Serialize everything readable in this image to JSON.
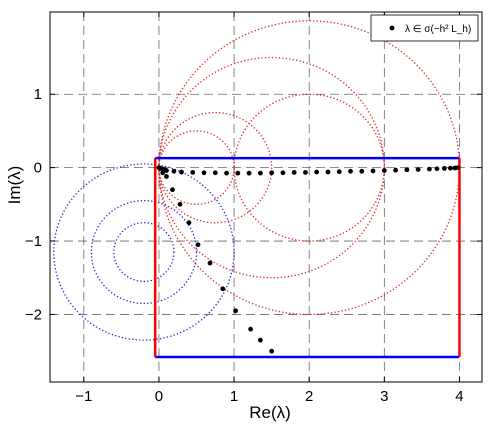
{
  "chart_data": {
    "type": "scatter",
    "xlabel": "Re(λ)",
    "ylabel": "Im(λ)",
    "xlim": [
      -1.45,
      4.3
    ],
    "ylim": [
      -2.92,
      2.12
    ],
    "xticks": [
      -1,
      0,
      1,
      2,
      3,
      4
    ],
    "yticks": [
      -2,
      -1,
      0,
      1
    ],
    "xtick_labels": [
      "−1",
      "0",
      "1",
      "2",
      "3",
      "4"
    ],
    "ytick_labels": [
      "−2",
      "−1",
      "0",
      "1"
    ],
    "grid": true,
    "legend": {
      "placement": "top-right",
      "entries": [
        {
          "marker": "black-dot",
          "label": "λ ∈ σ(−h² L_h)"
        }
      ]
    },
    "series": [
      {
        "name": "λ ∈ σ(−h² L_h)",
        "color": "#000000",
        "points": [
          [
            0.0,
            0.0
          ],
          [
            0.02,
            -0.01
          ],
          [
            0.04,
            -0.015
          ],
          [
            0.06,
            -0.02
          ],
          [
            0.08,
            -0.03
          ],
          [
            0.1,
            -0.04
          ],
          [
            0.2,
            -0.05
          ],
          [
            0.3,
            -0.06
          ],
          [
            0.45,
            -0.065
          ],
          [
            0.6,
            -0.07
          ],
          [
            0.75,
            -0.07
          ],
          [
            0.9,
            -0.075
          ],
          [
            1.05,
            -0.075
          ],
          [
            1.2,
            -0.075
          ],
          [
            1.35,
            -0.075
          ],
          [
            1.5,
            -0.07
          ],
          [
            1.65,
            -0.07
          ],
          [
            1.8,
            -0.065
          ],
          [
            1.95,
            -0.065
          ],
          [
            2.1,
            -0.06
          ],
          [
            2.25,
            -0.06
          ],
          [
            2.4,
            -0.055
          ],
          [
            2.55,
            -0.05
          ],
          [
            2.7,
            -0.05
          ],
          [
            2.85,
            -0.045
          ],
          [
            3.0,
            -0.04
          ],
          [
            3.15,
            -0.035
          ],
          [
            3.3,
            -0.03
          ],
          [
            3.45,
            -0.025
          ],
          [
            3.6,
            -0.02
          ],
          [
            3.7,
            -0.015
          ],
          [
            3.8,
            -0.01
          ],
          [
            3.88,
            -0.008
          ],
          [
            3.94,
            -0.005
          ],
          [
            3.98,
            0.0
          ],
          [
            0.05,
            -0.07
          ],
          [
            0.1,
            -0.12
          ],
          [
            0.18,
            -0.3
          ],
          [
            0.28,
            -0.5
          ],
          [
            0.4,
            -0.75
          ],
          [
            0.52,
            -1.05
          ],
          [
            0.68,
            -1.3
          ],
          [
            0.85,
            -1.65
          ],
          [
            1.02,
            -1.95
          ],
          [
            1.22,
            -2.2
          ],
          [
            1.35,
            -2.35
          ],
          [
            1.5,
            -2.5
          ]
        ]
      }
    ],
    "circles": [
      {
        "color": "#dd2222",
        "cx": 2.0,
        "cy": 0.0,
        "r": 2.0
      },
      {
        "color": "#dd2222",
        "cx": 1.5,
        "cy": 0.0,
        "r": 1.5
      },
      {
        "color": "#dd2222",
        "cx": 2.0,
        "cy": 0.0,
        "r": 1.0
      },
      {
        "color": "#dd2222",
        "cx": 0.75,
        "cy": 0.0,
        "r": 0.75
      },
      {
        "color": "#dd2222",
        "cx": 0.5,
        "cy": 0.0,
        "r": 0.5
      },
      {
        "color": "#2222dd",
        "cx": -0.2,
        "cy": -1.15,
        "r": 1.2
      },
      {
        "color": "#2222dd",
        "cx": -0.2,
        "cy": -1.15,
        "r": 0.7
      },
      {
        "color": "#2222dd",
        "cx": -0.2,
        "cy": -1.15,
        "r": 0.4
      }
    ],
    "rectangle": {
      "x0": -0.05,
      "x1": 4.0,
      "y0": -2.58,
      "y1": 0.13,
      "horizontal_color": "#0000ff",
      "vertical_color": "#ff0000"
    }
  }
}
